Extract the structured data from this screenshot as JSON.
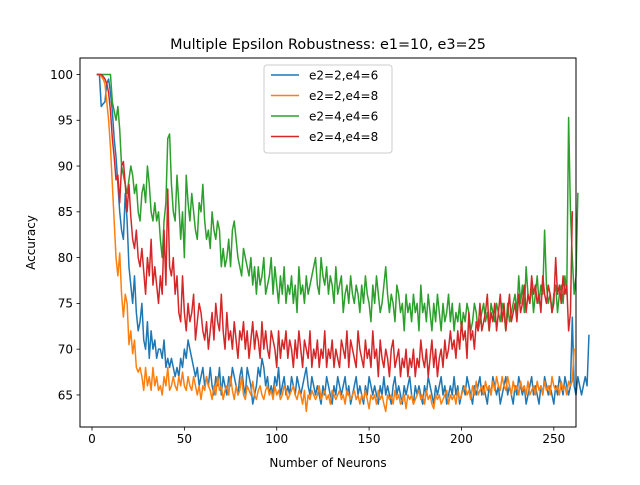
{
  "chart_data": {
    "type": "line",
    "title": "Multiple Epsilon Robustness: e1=10, e3=25",
    "xlabel": "Number of Neurons",
    "ylabel": "Accuracy",
    "xlim": [
      -6.5,
      262
    ],
    "ylim": [
      61.5,
      101.8
    ],
    "xticks": [
      0,
      50,
      100,
      150,
      200,
      250
    ],
    "yticks": [
      65,
      70,
      75,
      80,
      85,
      90,
      95,
      100
    ],
    "grid": false,
    "legend": {
      "placement": "top-center"
    },
    "x_start": 3,
    "x_step": 1,
    "series": [
      {
        "name": "e2=2,e4=6",
        "color": "#1f77b4",
        "values": [
          100,
          100,
          96.5,
          96.8,
          97,
          99,
          99.5,
          98,
          96,
          93,
          91,
          88,
          85,
          83,
          82,
          87,
          84,
          79,
          77,
          75,
          78,
          74,
          72,
          73,
          75,
          71,
          70,
          73,
          69,
          72,
          70,
          71,
          69,
          70,
          70,
          69,
          71,
          68,
          69,
          68,
          69,
          68,
          67,
          68,
          67,
          69,
          68,
          70,
          69,
          71,
          70,
          69,
          68,
          67,
          68,
          66,
          67,
          68,
          66,
          67,
          66,
          68,
          66,
          65,
          67,
          66,
          68,
          65,
          67,
          66,
          65,
          67,
          66,
          68,
          67,
          66,
          65,
          67,
          68,
          66,
          65,
          68,
          67,
          66,
          64,
          65,
          66,
          68,
          67,
          69,
          68,
          66,
          67,
          65,
          66,
          65,
          67,
          66,
          68,
          65,
          66,
          67,
          65,
          66,
          65,
          67,
          66,
          65,
          67,
          66,
          65,
          66,
          67,
          68,
          66,
          65,
          67,
          66,
          65,
          66,
          65,
          64,
          66,
          65,
          67,
          66,
          65,
          64,
          66,
          65,
          67,
          66,
          65,
          66,
          67,
          65,
          66,
          64,
          65,
          66,
          67,
          65,
          66,
          65,
          64,
          66,
          65,
          67,
          66,
          65,
          66,
          65,
          64,
          66,
          65,
          67,
          65,
          66,
          65,
          64,
          66,
          67,
          65,
          66,
          65,
          64,
          66,
          65,
          66,
          67,
          65,
          64,
          66,
          65,
          66,
          65,
          64,
          66,
          65,
          67,
          66,
          65,
          64,
          66,
          65,
          66,
          67,
          65,
          66,
          64,
          65,
          66,
          65,
          67,
          65,
          66,
          64,
          65,
          66,
          65,
          67,
          66,
          65,
          64,
          66,
          65,
          66,
          67,
          65,
          66,
          65,
          64,
          66,
          65,
          67,
          66,
          65,
          66,
          64,
          65,
          66,
          67,
          65,
          66,
          65,
          64,
          66,
          65,
          67,
          66,
          65,
          66,
          64,
          65,
          66,
          67,
          65,
          66,
          65,
          64,
          66,
          65,
          67,
          66,
          65,
          66,
          65,
          64,
          66,
          65,
          67,
          66,
          65,
          67,
          66,
          65,
          66,
          73.5,
          66,
          65,
          67,
          66,
          65,
          66,
          67,
          66,
          71.5
        ]
      },
      {
        "name": "e2=2,e4=8",
        "color": "#ff7f0e",
        "values": [
          100,
          100,
          99.8,
          99.5,
          99,
          97,
          95,
          92,
          88,
          84,
          80,
          78,
          80.5,
          76,
          73.5,
          76,
          75,
          70.5,
          72,
          69.5,
          71,
          68,
          67.5,
          68,
          67,
          65.5,
          68,
          66,
          67,
          65.5,
          68,
          66,
          67,
          65.5,
          66,
          65,
          67,
          66,
          68,
          65.5,
          66,
          67,
          66,
          65.5,
          67,
          66,
          67.5,
          66,
          65.5,
          67,
          66,
          65.5,
          67,
          66,
          65,
          66,
          64.5,
          66,
          65.5,
          67,
          66,
          65.5,
          64.5,
          66,
          65,
          67,
          65.5,
          66,
          64.5,
          65.5,
          66,
          65,
          67,
          65.5,
          64.5,
          66,
          65,
          65.5,
          67,
          65,
          64.5,
          66,
          65.5,
          65,
          66.5,
          65,
          64.5,
          65.5,
          66,
          65,
          64.5,
          65.5,
          66,
          65,
          65.5,
          64.5,
          66,
          65,
          65.5,
          64.5,
          65,
          66,
          65.5,
          64.5,
          65,
          65.5,
          66,
          65,
          64.5,
          65.5,
          65,
          64,
          65.5,
          63.2,
          65,
          64.5,
          65.5,
          65,
          64.5,
          65,
          66,
          64.5,
          65,
          65.5,
          64.5,
          65,
          64,
          65.5,
          65,
          64.5,
          65,
          65.5,
          64.5,
          65,
          64,
          65.5,
          65,
          64.5,
          65,
          65.5,
          64.5,
          65,
          64,
          65,
          64.5,
          65.5,
          64.5,
          63.5,
          65,
          64.5,
          65,
          64,
          65.5,
          64.5,
          65,
          64,
          63.2,
          65,
          64.5,
          65,
          64,
          65.5,
          64.5,
          65,
          64,
          64.5,
          65,
          63.5,
          65,
          64.5,
          65,
          64,
          64.5,
          65,
          65.5,
          64.5,
          65,
          64,
          65.5,
          64.5,
          65,
          64,
          63.5,
          65,
          64.5,
          65,
          64,
          64.5,
          65,
          65.5,
          64,
          65,
          64.5,
          65,
          64,
          65.5,
          64.5,
          65,
          65.5,
          66,
          65,
          65.5,
          64.5,
          66,
          65,
          66.5,
          65,
          65.5,
          66,
          65,
          66.5,
          65.5,
          66,
          65,
          66.5,
          65.5,
          67,
          66,
          65.5,
          67,
          66,
          65.5,
          67,
          66,
          65,
          66.5,
          65.5,
          66,
          65,
          66.5,
          65.5,
          66,
          65,
          66.5,
          65,
          65.5,
          66,
          65,
          66.5,
          65.5,
          66,
          65,
          66.5,
          65.5,
          66,
          65,
          67,
          66,
          65.5,
          66,
          65,
          66.5,
          65.5,
          66,
          65,
          66.5,
          66,
          66.5,
          70
        ]
      },
      {
        "name": "e2=4,e4=6",
        "color": "#2ca02c",
        "values": [
          100,
          100,
          100,
          100,
          100,
          100,
          100,
          100,
          97,
          96,
          95,
          96.5,
          94,
          90,
          89,
          88,
          87,
          88.5,
          90,
          89,
          87,
          88,
          85,
          84,
          87,
          88,
          86,
          90,
          88,
          85,
          84,
          86,
          84,
          85,
          82,
          80,
          84,
          86,
          93,
          93.5,
          88,
          85,
          84,
          89,
          86,
          82,
          85,
          80,
          89,
          86,
          84,
          87,
          85,
          83,
          82,
          86,
          85,
          88,
          84,
          82,
          83,
          81,
          85,
          83,
          82,
          84,
          83,
          79,
          81,
          79,
          80,
          82,
          79,
          83,
          84,
          82,
          80,
          79,
          78,
          81,
          80,
          79,
          78,
          80,
          77,
          79,
          76,
          79,
          77,
          78,
          80,
          76,
          77,
          78,
          80,
          76,
          79,
          77,
          75,
          78,
          76,
          79,
          75,
          77,
          76,
          78,
          75,
          77,
          74,
          79,
          76,
          77,
          75,
          78,
          76,
          77,
          78,
          79,
          80,
          77,
          76,
          80,
          78,
          77,
          79,
          76,
          78,
          77,
          75,
          79,
          76,
          77,
          78,
          74,
          76,
          77,
          75,
          78,
          76,
          75,
          77,
          76,
          74,
          77,
          75,
          78,
          76,
          75,
          73,
          77,
          75,
          78,
          76,
          74,
          75,
          77,
          79,
          76,
          74,
          76,
          75,
          73,
          77,
          76,
          74,
          75,
          72,
          76,
          74,
          75,
          73,
          76,
          74,
          75,
          72,
          77,
          74,
          75,
          73,
          76,
          74,
          72,
          75,
          73,
          76,
          74,
          72,
          75,
          73,
          74,
          76,
          73,
          75,
          72,
          74,
          73,
          75,
          72,
          74,
          73,
          75,
          74,
          72,
          73,
          75,
          74,
          72,
          73,
          74,
          75,
          73,
          74,
          72,
          75,
          74,
          73,
          75,
          74,
          73,
          75,
          74,
          72,
          75,
          73,
          74,
          75,
          76,
          74,
          78,
          75,
          77,
          74,
          79,
          76,
          75,
          77,
          74,
          76,
          78,
          75,
          77,
          76,
          83,
          77,
          75,
          76,
          74,
          76,
          77,
          74,
          76,
          77,
          75,
          78,
          76,
          95.3,
          85,
          80,
          76,
          78,
          87
        ]
      },
      {
        "name": "e2=4,e4=8",
        "color": "#d62728",
        "values": [
          100,
          100,
          100,
          99.8,
          99.5,
          99,
          98,
          96,
          93,
          91,
          88.5,
          89,
          86,
          90,
          90.5,
          88,
          85,
          88,
          84.5,
          82,
          81,
          83,
          80,
          79,
          81,
          78.5,
          76,
          80,
          78,
          82,
          77,
          79,
          77,
          75,
          78,
          76,
          83,
          77,
          87.5,
          79,
          78,
          80,
          76,
          78,
          74,
          73,
          78,
          74,
          72,
          75,
          73,
          74,
          76,
          71,
          73,
          75,
          74,
          72,
          71,
          73,
          70,
          72,
          74,
          71,
          75,
          73,
          72,
          76,
          72,
          70,
          74,
          71,
          72,
          70,
          73,
          71,
          69,
          72,
          71,
          73,
          70,
          72,
          69,
          71,
          73,
          70,
          72,
          71,
          69,
          73,
          70,
          72,
          70,
          69,
          72,
          71,
          70,
          68,
          72,
          69,
          71,
          70,
          72,
          69,
          71,
          70,
          68,
          71,
          69,
          72,
          70,
          68,
          71,
          70,
          69,
          72,
          68,
          70,
          69,
          71,
          68,
          70,
          69,
          72,
          68,
          70,
          69,
          71,
          68,
          70,
          69,
          68,
          71,
          70,
          69,
          72,
          68,
          71,
          70,
          69,
          68,
          72,
          70,
          69,
          68,
          71,
          69,
          70,
          68,
          72,
          69,
          70,
          67,
          71,
          69,
          68,
          70,
          69,
          67,
          70,
          71,
          68,
          69,
          70,
          67,
          69,
          68,
          70,
          67,
          69,
          68,
          70,
          67,
          69,
          68,
          71,
          69,
          68,
          70,
          67,
          69,
          71,
          68,
          70,
          67,
          69,
          70,
          68,
          71,
          69,
          70,
          72,
          70,
          71,
          69,
          72,
          70,
          73,
          71,
          72,
          69,
          74,
          71,
          72,
          70,
          73,
          72,
          75,
          72,
          73,
          74,
          76,
          72,
          74,
          73,
          75,
          72,
          74,
          76,
          73,
          75,
          72,
          74,
          76,
          73,
          74,
          75,
          73,
          76,
          74,
          75,
          77,
          74,
          76,
          75,
          78,
          76,
          77,
          75,
          76,
          74,
          78,
          76,
          75,
          77,
          76,
          74,
          75,
          80,
          76,
          77,
          75,
          78,
          76,
          77,
          72,
          74,
          85
        ]
      }
    ]
  }
}
